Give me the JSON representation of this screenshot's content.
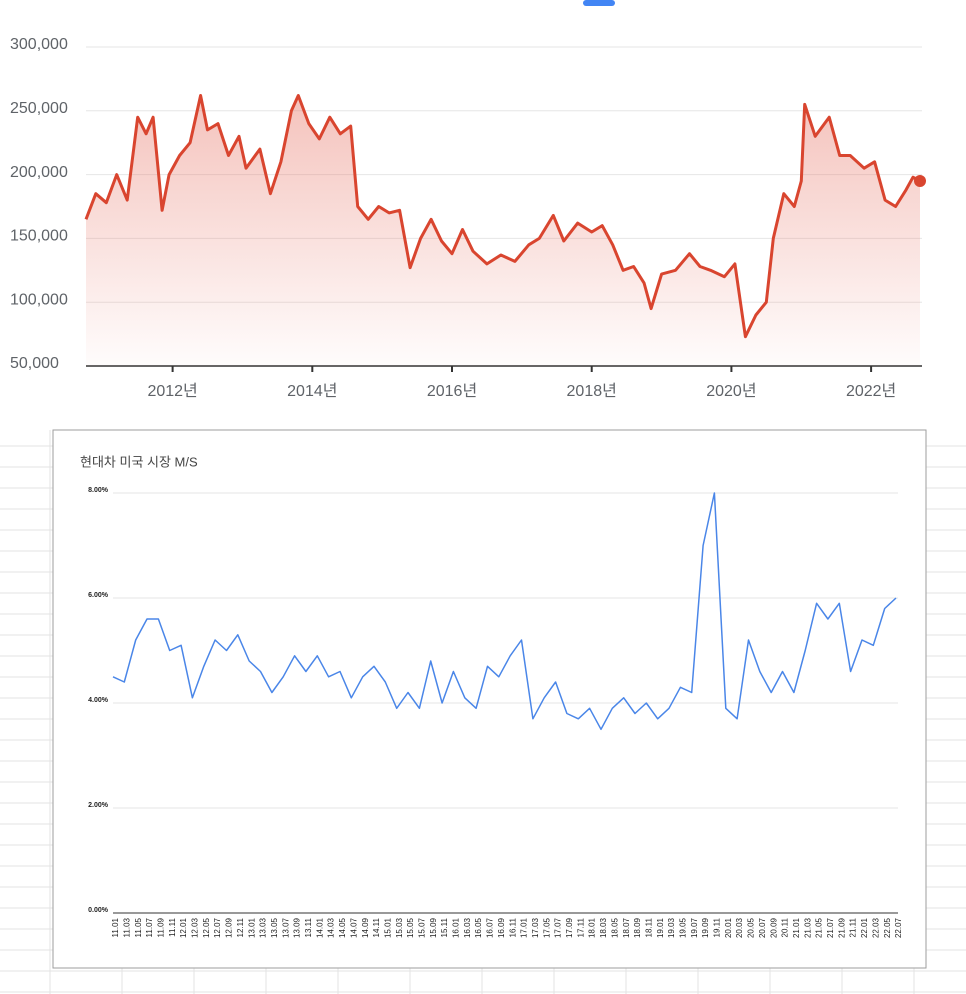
{
  "chart_data": [
    {
      "type": "line",
      "color": "#d9452f",
      "grid": true,
      "x": [
        2010.76,
        2010.9,
        2011.05,
        2011.2,
        2011.35,
        2011.5,
        2011.62,
        2011.72,
        2011.85,
        2011.95,
        2012.1,
        2012.25,
        2012.4,
        2012.5,
        2012.65,
        2012.8,
        2012.95,
        2013.05,
        2013.25,
        2013.4,
        2013.55,
        2013.7,
        2013.8,
        2013.95,
        2014.1,
        2014.25,
        2014.4,
        2014.55,
        2014.65,
        2014.8,
        2014.95,
        2015.1,
        2015.25,
        2015.4,
        2015.55,
        2015.7,
        2015.85,
        2016.0,
        2016.15,
        2016.3,
        2016.5,
        2016.7,
        2016.9,
        2017.1,
        2017.25,
        2017.45,
        2017.6,
        2017.8,
        2018.0,
        2018.15,
        2018.3,
        2018.45,
        2018.6,
        2018.75,
        2018.85,
        2019.0,
        2019.2,
        2019.4,
        2019.55,
        2019.7,
        2019.9,
        2020.05,
        2020.2,
        2020.35,
        2020.5,
        2020.6,
        2020.75,
        2020.9,
        2021.0,
        2021.05,
        2021.2,
        2021.4,
        2021.55,
        2021.7,
        2021.9,
        2022.05,
        2022.2,
        2022.35,
        2022.5,
        2022.6,
        2022.7
      ],
      "values": [
        165000,
        185000,
        178000,
        200000,
        180000,
        245000,
        232000,
        245000,
        172000,
        200000,
        215000,
        225000,
        262000,
        235000,
        240000,
        215000,
        230000,
        205000,
        220000,
        185000,
        210000,
        250000,
        262000,
        240000,
        228000,
        245000,
        232000,
        238000,
        175000,
        165000,
        175000,
        170000,
        172000,
        127000,
        150000,
        165000,
        148000,
        138000,
        157000,
        140000,
        130000,
        137000,
        132000,
        145000,
        150000,
        168000,
        148000,
        162000,
        155000,
        160000,
        145000,
        125000,
        128000,
        115000,
        95000,
        122000,
        125000,
        138000,
        128000,
        125000,
        120000,
        130000,
        73000,
        90000,
        100000,
        150000,
        185000,
        175000,
        195000,
        255000,
        230000,
        245000,
        215000,
        215000,
        205000,
        210000,
        180000,
        175000,
        188000,
        198000,
        195000
      ],
      "xlim": [
        2010.76,
        2022.7
      ],
      "xticks": [
        {
          "value": 2012,
          "label": "2012년"
        },
        {
          "value": 2014,
          "label": "2014년"
        },
        {
          "value": 2016,
          "label": "2016년"
        },
        {
          "value": 2018,
          "label": "2018년"
        },
        {
          "value": 2020,
          "label": "2020년"
        },
        {
          "value": 2022,
          "label": "2022년"
        }
      ],
      "ylim": [
        50000,
        300000
      ],
      "yticks": [
        {
          "value": 50000,
          "label": "50,000"
        },
        {
          "value": 100000,
          "label": "100,000"
        },
        {
          "value": 150000,
          "label": "150,000"
        },
        {
          "value": 200000,
          "label": "200,000"
        },
        {
          "value": 250000,
          "label": "250,000"
        },
        {
          "value": 300000,
          "label": "300,000"
        }
      ]
    },
    {
      "type": "line",
      "title": "현대차 미국 시장 M/S",
      "color": "#4a86e8",
      "grid": true,
      "categories": [
        "11.01",
        "11.03",
        "11.05",
        "11.07",
        "11.09",
        "11.11",
        "12.01",
        "12.03",
        "12.05",
        "12.07",
        "12.09",
        "12.11",
        "13.01",
        "13.03",
        "13.05",
        "13.07",
        "13.09",
        "13.11",
        "14.01",
        "14.03",
        "14.05",
        "14.07",
        "14.09",
        "14.11",
        "15.01",
        "15.03",
        "15.05",
        "15.07",
        "15.09",
        "15.11",
        "16.01",
        "16.03",
        "16.05",
        "16.07",
        "16.09",
        "16.11",
        "17.01",
        "17.03",
        "17.05",
        "17.07",
        "17.09",
        "17.11",
        "18.01",
        "18.03",
        "18.05",
        "18.07",
        "18.09",
        "18.11",
        "19.01",
        "19.03",
        "19.05",
        "19.07",
        "19.09",
        "19.11",
        "20.01",
        "20.03",
        "20.05",
        "20.07",
        "20.09",
        "20.11",
        "21.01",
        "21.03",
        "21.05",
        "21.07",
        "21.09",
        "21.11",
        "22.01",
        "22.03",
        "22.05",
        "22.07"
      ],
      "values": [
        4.5,
        4.4,
        5.2,
        5.6,
        5.6,
        5.0,
        5.1,
        4.1,
        4.7,
        5.2,
        5.0,
        5.3,
        4.8,
        4.6,
        4.2,
        4.5,
        4.9,
        4.6,
        4.9,
        4.5,
        4.6,
        4.1,
        4.5,
        4.7,
        4.4,
        3.9,
        4.2,
        3.9,
        4.8,
        4.0,
        4.6,
        4.1,
        3.9,
        4.7,
        4.5,
        4.9,
        5.2,
        3.7,
        4.1,
        4.4,
        3.8,
        3.7,
        3.9,
        3.5,
        3.9,
        4.1,
        3.8,
        4.0,
        3.7,
        3.9,
        4.3,
        4.2,
        7.0,
        8.0,
        3.9,
        3.7,
        5.2,
        4.6,
        4.2,
        4.6,
        4.2,
        5.0,
        5.9,
        5.6,
        5.9,
        4.6,
        5.2,
        5.1,
        5.8,
        6.0
      ],
      "ylim": [
        0,
        8
      ],
      "yticks": [
        {
          "value": 0,
          "label": "0.00%"
        },
        {
          "value": 2,
          "label": "2.00%"
        },
        {
          "value": 4,
          "label": "4.00%"
        },
        {
          "value": 6,
          "label": "6.00%"
        },
        {
          "value": 8,
          "label": "8.00%"
        }
      ]
    }
  ]
}
